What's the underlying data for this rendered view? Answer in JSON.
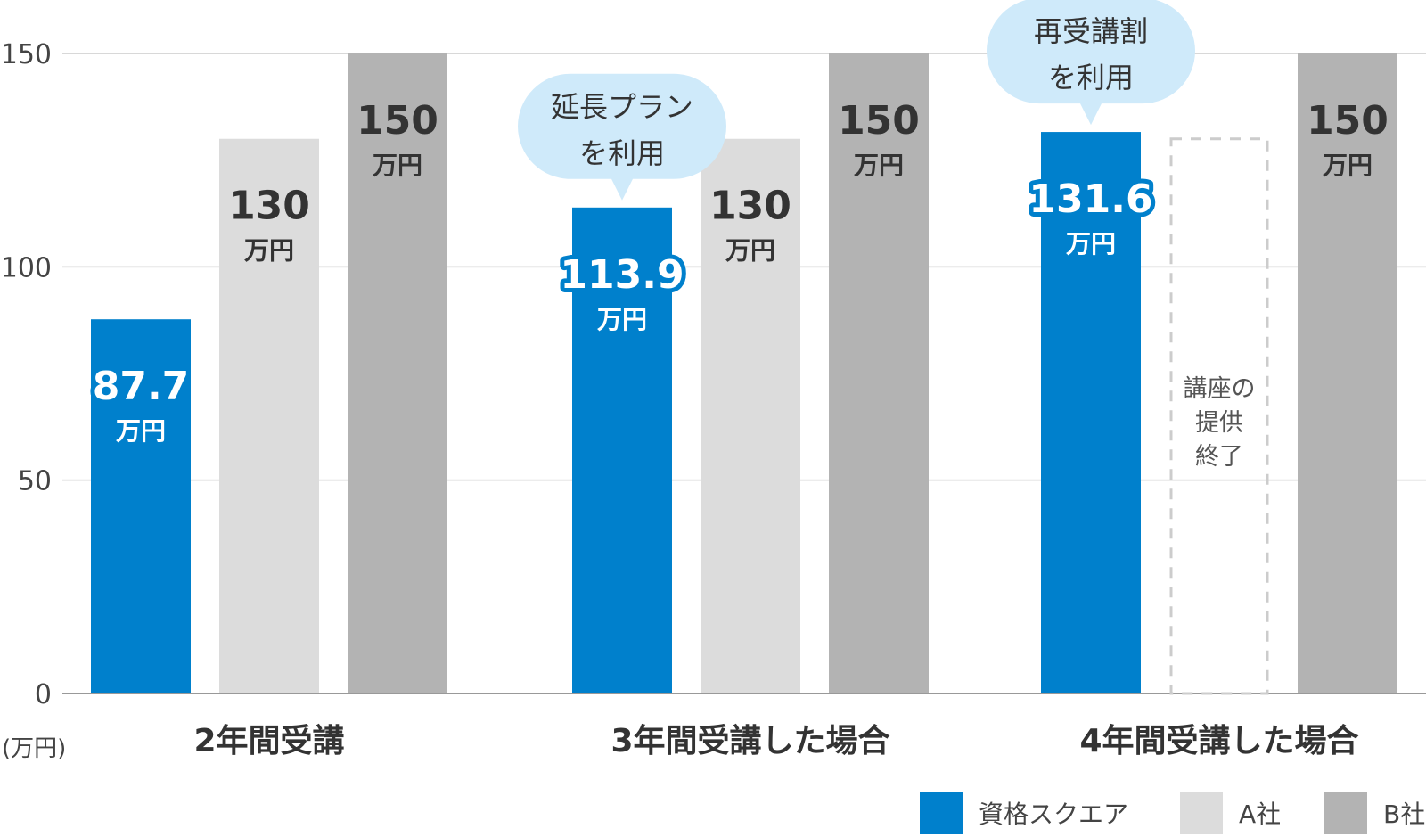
{
  "chart_data": {
    "type": "bar",
    "categories": [
      "2年間受講",
      "3年間受講した場合",
      "4年間受講した場合"
    ],
    "series": [
      {
        "name": "資格スクエア",
        "values": [
          87.7,
          113.9,
          131.6
        ]
      },
      {
        "name": "A社",
        "values": [
          130,
          130,
          null
        ]
      },
      {
        "name": "B社",
        "values": [
          150,
          150,
          150
        ]
      }
    ],
    "value_labels": [
      [
        "87.7",
        "130",
        "150"
      ],
      [
        "113.9",
        "130",
        "150"
      ],
      [
        "131.6",
        null,
        "150"
      ]
    ],
    "value_unit_label": "万円",
    "y_unit_label": "(万円)",
    "ylim": [
      0,
      150
    ],
    "yticks": [
      0,
      50,
      100,
      150
    ],
    "ytick_labels": [
      "0",
      "50",
      "100",
      "150"
    ],
    "grid": true,
    "legend_position": "bottom-right",
    "colors": {
      "資格スクエア": "#0080cc",
      "A社": "#dcdcdc",
      "B社": "#b3b3b3"
    },
    "annotations": [
      {
        "category_index": 1,
        "series_index": 0,
        "lines": [
          "延長プラン",
          "を利用"
        ]
      },
      {
        "category_index": 2,
        "series_index": 0,
        "lines": [
          "再受講割",
          "を利用"
        ]
      }
    ],
    "missing_note": {
      "category_index": 2,
      "series_index": 1,
      "lines": [
        "講座の",
        "提供",
        "終了"
      ]
    }
  }
}
